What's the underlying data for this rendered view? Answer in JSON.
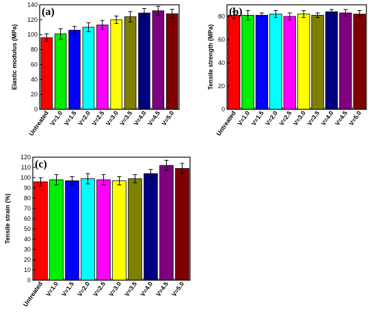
{
  "chart_data": [
    {
      "type": "bar",
      "panel_label": "(a)",
      "ylabel": "Elastic modulus (MPa)",
      "ylim": [
        0,
        140
      ],
      "yticks": [
        0,
        20,
        40,
        60,
        80,
        100,
        120,
        140
      ],
      "categories": [
        "Untreated",
        "V=1.0",
        "V=1.5",
        "V=2.0",
        "V=2.5",
        "V=3.0",
        "V=3.5",
        "V=4.0",
        "V=4.5",
        "V=5.0"
      ],
      "values": [
        96,
        101,
        106,
        110,
        113,
        120,
        124,
        129,
        132,
        128
      ],
      "errors": [
        5,
        7,
        5,
        6,
        6,
        5,
        7,
        6,
        6,
        6
      ],
      "colors": [
        "#ff0000",
        "#00ee00",
        "#0000ff",
        "#00ffff",
        "#ff00ff",
        "#ffff00",
        "#808000",
        "#000080",
        "#800080",
        "#800000"
      ],
      "grid": false,
      "legend": "none"
    },
    {
      "type": "bar",
      "panel_label": "(b)",
      "ylabel": "Tensile strength (MPa)",
      "ylim": [
        0,
        90
      ],
      "yticks": [
        0,
        20,
        40,
        60,
        80
      ],
      "categories": [
        "Untreated",
        "V=1.0",
        "V=1.5",
        "V=2.0",
        "V=2.5",
        "V=3.0",
        "V=3.5",
        "V=4.0",
        "V=4.5",
        "V=5.0"
      ],
      "values": [
        81,
        81,
        81,
        82,
        80,
        82,
        81,
        84,
        83,
        82
      ],
      "errors": [
        3,
        4,
        2,
        3,
        3,
        3,
        2,
        2,
        3,
        3
      ],
      "colors": [
        "#ff0000",
        "#00ee00",
        "#0000ff",
        "#00ffff",
        "#ff00ff",
        "#ffff00",
        "#808000",
        "#000080",
        "#800080",
        "#800000"
      ],
      "grid": false,
      "legend": "none"
    },
    {
      "type": "bar",
      "panel_label": "(c)",
      "ylabel": "Tensile strain (%)",
      "ylim": [
        0,
        120
      ],
      "yticks": [
        0,
        10,
        20,
        30,
        40,
        50,
        60,
        70,
        80,
        90,
        100,
        110,
        120
      ],
      "categories": [
        "Untreated",
        "V=1.0",
        "V=1.5",
        "V=2.0",
        "V=2.5",
        "V=3.0",
        "V=3.5",
        "V=4.0",
        "V=4.5",
        "V=5.0"
      ],
      "values": [
        96,
        98,
        97,
        99,
        98,
        97,
        99,
        104,
        112,
        109
      ],
      "errors": [
        4,
        5,
        4,
        5,
        5,
        4,
        4,
        4,
        5,
        5
      ],
      "colors": [
        "#ff0000",
        "#00ee00",
        "#0000ff",
        "#00ffff",
        "#ff00ff",
        "#ffff00",
        "#808000",
        "#000080",
        "#800080",
        "#800000"
      ],
      "grid": false,
      "legend": "none"
    }
  ]
}
